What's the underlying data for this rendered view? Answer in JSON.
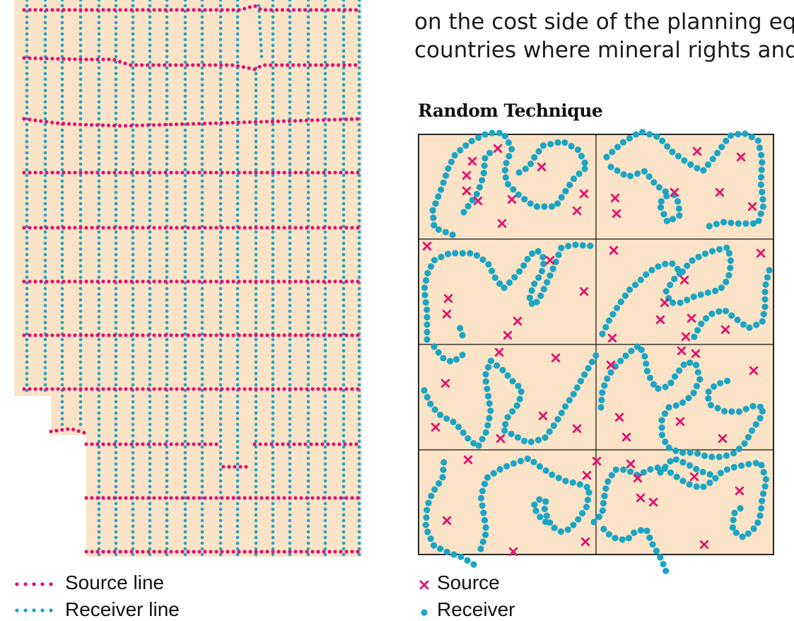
{
  "text_fragment": {
    "line_1": "on the cost side of the planning eq",
    "line_2": "countries where mineral rights and"
  },
  "colors": {
    "background": "#fbe3c7",
    "source": "#e0126f",
    "receiver": "#1aa5c4",
    "border": "#111111"
  },
  "left_legend": {
    "source_label": "Source line",
    "receiver_label": "Receiver line"
  },
  "random_technique": {
    "title": "Random Technique",
    "legend": {
      "source_label": "Source",
      "receiver_label": "Receiver"
    }
  }
}
